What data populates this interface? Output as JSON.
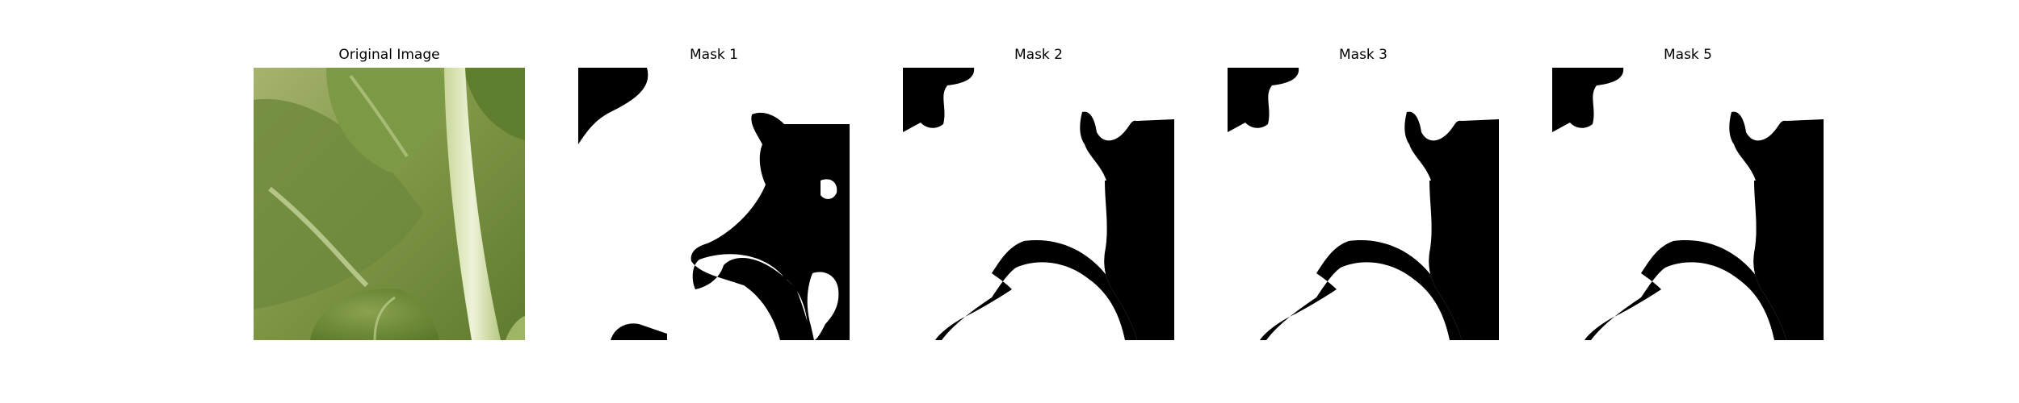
{
  "panels": [
    {
      "title": "Original Image"
    },
    {
      "title": "Mask 1"
    },
    {
      "title": "Mask 2"
    },
    {
      "title": "Mask 3"
    },
    {
      "title": "Mask 5"
    }
  ],
  "colors": {
    "background": "#ffffff",
    "mask_foreground": "#ffffff",
    "mask_background": "#000000",
    "leaf_dark": "#6f8a3a",
    "leaf_light": "#bcc98a",
    "stem": "#dfe8c2"
  }
}
